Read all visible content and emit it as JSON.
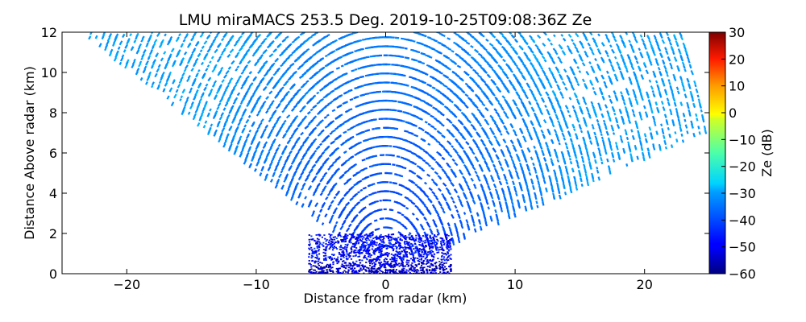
{
  "chart_data": {
    "type": "heatmap",
    "title": "LMU miraMACS 253.5 Deg. 2019-10-25T09:08:36Z  Ze",
    "xlabel": "Distance from radar (km)",
    "ylabel": "Distance Above radar  (km)",
    "xlim": [
      -25,
      25
    ],
    "ylim": [
      0,
      12
    ],
    "xticks": [
      -20,
      -10,
      0,
      10,
      20
    ],
    "xtick_labels": [
      "−20",
      "−10",
      "0",
      "10",
      "20"
    ],
    "yticks": [
      0,
      2,
      4,
      6,
      8,
      10,
      12
    ],
    "ytick_labels": [
      "0",
      "2",
      "4",
      "6",
      "8",
      "10",
      "12"
    ],
    "colorbar": {
      "label": "Ze (dB)",
      "range": [
        -60,
        30
      ],
      "ticks": [
        -60,
        -50,
        -40,
        -30,
        -20,
        -10,
        0,
        10,
        20,
        30
      ],
      "tick_labels": [
        "−60",
        "−50",
        "−40",
        "−30",
        "−20",
        "−10",
        "0",
        "10",
        "20",
        "30"
      ],
      "colormap": "jet"
    },
    "scan": {
      "description_visible": "RHI scan wedge",
      "left_edge_angle_deg": 153,
      "right_edge_angle_deg": 16,
      "max_range_km": 26
    },
    "reflectivity_profile": {
      "far_field_value": -30,
      "near_field_value": -40,
      "low_level_layer": {
        "x_range_km": [
          -6,
          5
        ],
        "y_range_km": [
          0,
          2
        ],
        "value": -48
      }
    },
    "grid": false,
    "legend": "none"
  }
}
